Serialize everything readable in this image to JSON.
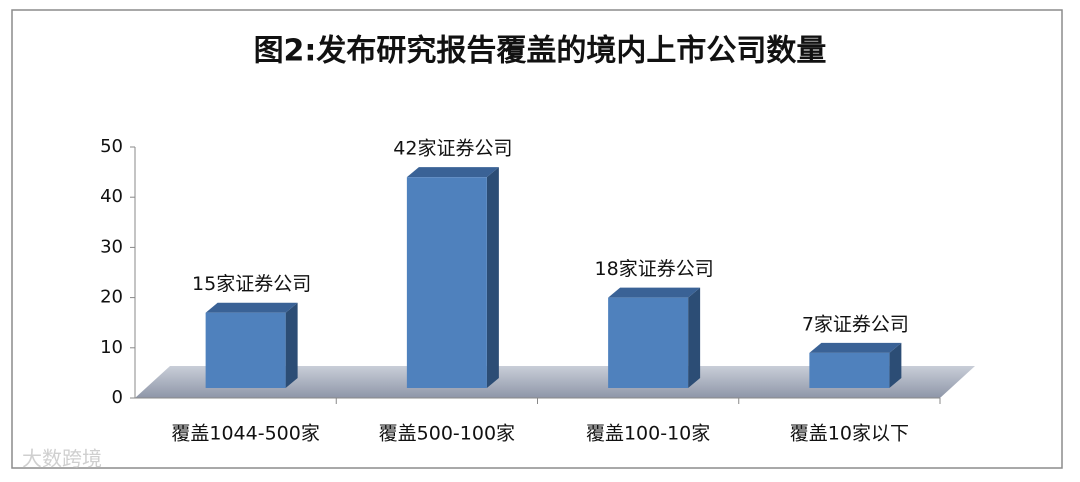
{
  "chart_data": {
    "type": "bar3d",
    "title": "图2:发布研究报告覆盖的境内上市公司数量",
    "categories": [
      "覆盖1044-500家",
      "覆盖500-100家",
      "覆盖100-10家",
      "覆盖10家以下"
    ],
    "values": [
      15,
      42,
      18,
      7
    ],
    "value_labels": [
      "15家证券公司",
      "42家证券公司",
      "18家证券公司",
      "7家证券公司"
    ],
    "color": "#4f81bd",
    "ylim": [
      0,
      50
    ],
    "yticks": [
      0,
      10,
      20,
      30,
      40,
      50
    ],
    "watermark": "大数跨境"
  }
}
